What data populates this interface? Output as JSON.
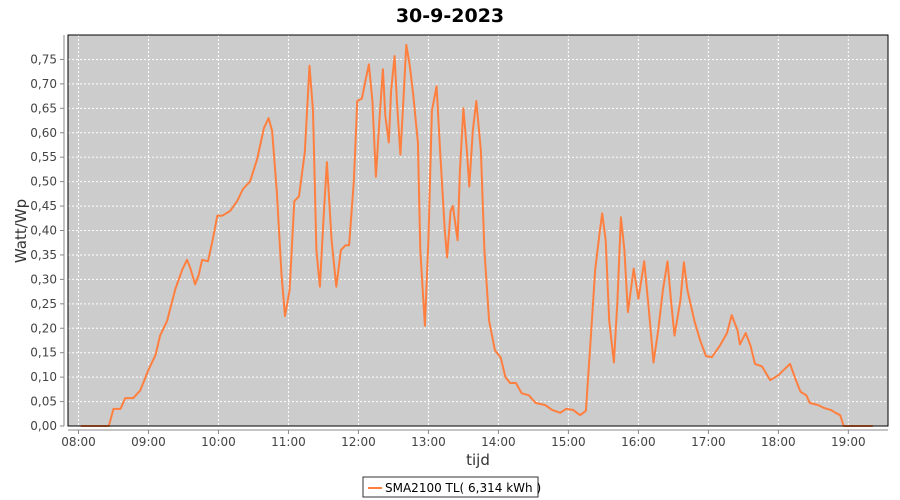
{
  "chart_data": {
    "type": "line",
    "title": "30-9-2023",
    "xlabel": "tijd",
    "ylabel": "Watt/Wp",
    "xlim": [
      "07:51",
      "19:34"
    ],
    "ylim": [
      0,
      0.8
    ],
    "x_ticks": [
      "08:00",
      "09:00",
      "10:00",
      "11:00",
      "12:00",
      "13:00",
      "14:00",
      "15:00",
      "16:00",
      "17:00",
      "18:00",
      "19:00"
    ],
    "y_ticks": [
      "0,00",
      "0,05",
      "0,10",
      "0,15",
      "0,20",
      "0,25",
      "0,30",
      "0,35",
      "0,40",
      "0,45",
      "0,50",
      "0,55",
      "0,60",
      "0,65",
      "0,70",
      "0,75"
    ],
    "grid": true,
    "legend_placement": "bottom",
    "plot_background": "#cccccc",
    "series": [
      {
        "name": "SMA2100 TL( 6,314 kWh )",
        "color": "#ff7f3f",
        "x": [
          "08:02",
          "08:26",
          "08:30",
          "08:36",
          "08:40",
          "08:47",
          "08:53",
          "09:00",
          "09:06",
          "09:10",
          "09:16",
          "09:23",
          "09:29",
          "09:33",
          "09:36",
          "09:40",
          "09:43",
          "09:46",
          "09:51",
          "09:55",
          "09:59",
          "10:03",
          "10:10",
          "10:16",
          "10:21",
          "10:27",
          "10:33",
          "10:39",
          "10:43",
          "10:46",
          "10:50",
          "10:54",
          "10:57",
          "11:01",
          "11:05",
          "11:09",
          "11:14",
          "11:18",
          "11:21",
          "11:24",
          "11:27",
          "11:30",
          "11:33",
          "11:37",
          "11:41",
          "11:45",
          "11:49",
          "11:52",
          "11:56",
          "11:59",
          "12:03",
          "12:06",
          "12:09",
          "12:12",
          "12:15",
          "12:18",
          "12:21",
          "12:23",
          "12:26",
          "12:28",
          "12:31",
          "12:33",
          "12:36",
          "12:39",
          "12:41",
          "12:44",
          "12:47",
          "12:51",
          "12:53",
          "12:57",
          "13:00",
          "13:03",
          "13:07",
          "13:10",
          "13:14",
          "13:16",
          "13:19",
          "13:21",
          "13:25",
          "13:27",
          "13:30",
          "13:33",
          "13:35",
          "13:38",
          "13:41",
          "13:45",
          "13:48",
          "13:52",
          "13:57",
          "14:02",
          "14:06",
          "14:10",
          "14:15",
          "14:20",
          "14:26",
          "14:32",
          "14:40",
          "14:46",
          "14:53",
          "14:58",
          "15:04",
          "15:10",
          "15:15",
          "15:19",
          "15:23",
          "15:27",
          "15:29",
          "15:32",
          "15:35",
          "15:39",
          "15:42",
          "15:45",
          "15:48",
          "15:51",
          "15:56",
          "16:00",
          "16:05",
          "16:09",
          "16:13",
          "16:17",
          "16:21",
          "16:25",
          "16:28",
          "16:31",
          "16:36",
          "16:39",
          "16:42",
          "16:48",
          "16:53",
          "16:58",
          "17:03",
          "17:10",
          "17:16",
          "17:20",
          "17:25",
          "17:27",
          "17:32",
          "17:36",
          "17:40",
          "17:46",
          "17:53",
          "18:00",
          "18:06",
          "18:10",
          "18:15",
          "18:19",
          "18:24",
          "18:27",
          "18:34",
          "18:39",
          "18:45",
          "18:49",
          "18:53",
          "18:56",
          "19:00",
          "19:21"
        ],
        "values": [
          0,
          0,
          0.035,
          0.035,
          0.057,
          0.057,
          0.073,
          0.115,
          0.145,
          0.185,
          0.215,
          0.28,
          0.32,
          0.34,
          0.322,
          0.29,
          0.308,
          0.34,
          0.337,
          0.38,
          0.43,
          0.43,
          0.44,
          0.46,
          0.485,
          0.5,
          0.545,
          0.61,
          0.63,
          0.604,
          0.48,
          0.31,
          0.225,
          0.278,
          0.46,
          0.47,
          0.56,
          0.737,
          0.645,
          0.36,
          0.285,
          0.42,
          0.54,
          0.38,
          0.285,
          0.36,
          0.37,
          0.37,
          0.5,
          0.665,
          0.67,
          0.706,
          0.74,
          0.665,
          0.51,
          0.625,
          0.73,
          0.635,
          0.58,
          0.686,
          0.757,
          0.665,
          0.555,
          0.686,
          0.78,
          0.737,
          0.676,
          0.58,
          0.36,
          0.205,
          0.38,
          0.645,
          0.695,
          0.563,
          0.4,
          0.345,
          0.44,
          0.45,
          0.38,
          0.522,
          0.65,
          0.563,
          0.49,
          0.604,
          0.665,
          0.563,
          0.36,
          0.215,
          0.155,
          0.14,
          0.1,
          0.088,
          0.088,
          0.067,
          0.063,
          0.047,
          0.043,
          0.033,
          0.027,
          0.035,
          0.033,
          0.022,
          0.031,
          0.175,
          0.32,
          0.4,
          0.435,
          0.38,
          0.216,
          0.13,
          0.255,
          0.427,
          0.36,
          0.233,
          0.322,
          0.26,
          0.337,
          0.237,
          0.13,
          0.196,
          0.278,
          0.337,
          0.257,
          0.185,
          0.257,
          0.335,
          0.278,
          0.215,
          0.175,
          0.143,
          0.141,
          0.165,
          0.19,
          0.227,
          0.196,
          0.167,
          0.19,
          0.165,
          0.127,
          0.122,
          0.094,
          0.104,
          0.118,
          0.127,
          0.094,
          0.07,
          0.063,
          0.047,
          0.043,
          0.037,
          0.033,
          0.027,
          0.022,
          0,
          0,
          0
        ]
      }
    ]
  }
}
